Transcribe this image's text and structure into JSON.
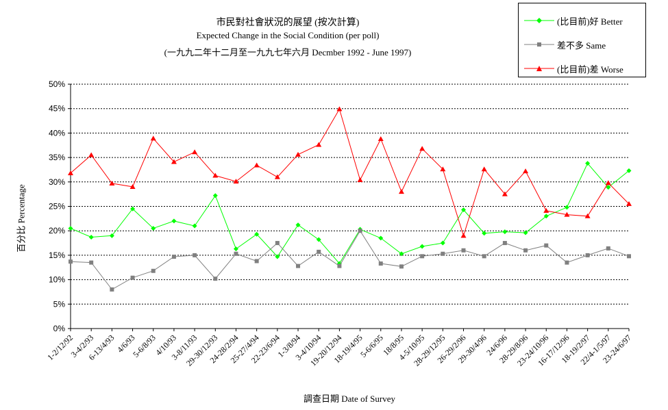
{
  "chart_data": {
    "type": "line",
    "title": "市民對社會狀況的展望 (按次計算)",
    "subtitle": "Expected Change in the Social Condition (per poll)",
    "subtitle2": "(一九九二年十二月至一九九七年六月 Decmber 1992 - June 1997)",
    "xlabel": "調查日期 Date of Survey",
    "ylabel": "百分比 Percentage",
    "ylim": [
      0,
      50
    ],
    "yticks": [
      "0%",
      "5%",
      "10%",
      "15%",
      "20%",
      "25%",
      "30%",
      "35%",
      "40%",
      "45%",
      "50%"
    ],
    "grid": true,
    "legend_position": "top-right",
    "categories": [
      "1-2/12/92",
      "3-4/2/93",
      "6-13/4/93",
      "4/6/93",
      "5-6/8/93",
      "4/10/93",
      "3-8/11/93",
      "29-30/12/93",
      "24-28/2/94",
      "25-27/4/94",
      "22-23/6/94",
      "1-3/8/94",
      "3-4/10/94",
      "19-20/12/94",
      "18-19/4/95",
      "5-6/6/95",
      "18/8/95",
      "4-5/10/95",
      "28-29/12/95",
      "26-29/2/96",
      "29-30/4/96",
      "24/6/96",
      "28-29/8/96",
      "23-24/10/96",
      "16-17/12/96",
      "18-19/2/97",
      "22/4-1/5/97",
      "23-24/6/97"
    ],
    "series": [
      {
        "name": "(比目前)好 Better",
        "color": "#00ff00",
        "marker": "diamond",
        "values": [
          20.5,
          18.7,
          19.0,
          24.5,
          20.5,
          22.0,
          21.0,
          27.2,
          16.3,
          19.3,
          14.7,
          21.2,
          18.2,
          13.3,
          20.3,
          18.5,
          15.3,
          16.8,
          17.5,
          24.3,
          19.5,
          19.8,
          19.6,
          23.0,
          24.8,
          33.8,
          28.9,
          32.3
        ]
      },
      {
        "name": "差不多 Same",
        "color": "#808080",
        "marker": "square",
        "values": [
          13.7,
          13.5,
          8.0,
          10.4,
          11.8,
          14.7,
          15.0,
          10.2,
          15.3,
          13.8,
          17.5,
          12.8,
          15.7,
          12.8,
          20.0,
          13.3,
          12.7,
          14.8,
          15.3,
          16.0,
          14.8,
          17.5,
          16.0,
          17.0,
          13.5,
          15.0,
          16.4,
          14.8
        ]
      },
      {
        "name": "(比目前)差 Worse",
        "color": "#ff0000",
        "marker": "triangle",
        "values": [
          31.8,
          35.5,
          29.7,
          29.0,
          38.9,
          34.1,
          36.1,
          31.3,
          30.1,
          33.4,
          31.0,
          35.6,
          37.6,
          44.9,
          30.4,
          38.8,
          28.0,
          36.8,
          32.6,
          19.0,
          32.6,
          27.5,
          32.2,
          24.1,
          23.3,
          23.0,
          29.8,
          25.5
        ]
      }
    ]
  }
}
